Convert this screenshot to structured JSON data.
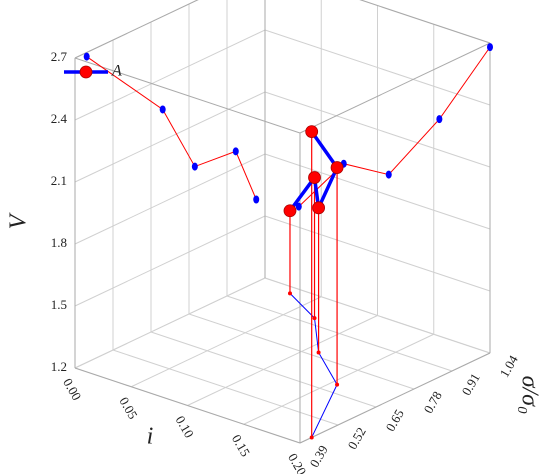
{
  "chart_data": {
    "type": "line3d",
    "xlabel": "i",
    "ylabel": "σ/σ₀",
    "zlabel": "V",
    "xlim": [
      0,
      0.2
    ],
    "xticks": [
      {
        "value": 0,
        "label": "0.00"
      },
      0.05,
      {
        "value": 0.1,
        "label": "0.10"
      },
      0.15,
      {
        "value": 0.2,
        "label": "0.20"
      }
    ],
    "ylim": [
      0.39,
      1.04
    ],
    "yticks": [
      0.39,
      0.52,
      0.65,
      0.78,
      0.91,
      1.04
    ],
    "zlim": [
      1.2,
      2.7
    ],
    "zticks": [
      1.2,
      1.5,
      1.8,
      2.1,
      2.4,
      2.7
    ],
    "grid": true,
    "legend": "top-left",
    "series": [
      {
        "name": "A",
        "color": "#0000ff",
        "marker_color": "#ff0000",
        "projection_color": "#ff0000",
        "x": [
          0.2,
          0.155,
          0.11,
          0.07,
          0.03
        ],
        "y": [
          0.43,
          0.69,
          0.8,
          0.94,
          1.01
        ],
        "z": [
          2.68,
          2.25,
          1.9,
          1.88,
          1.6
        ]
      }
    ]
  }
}
